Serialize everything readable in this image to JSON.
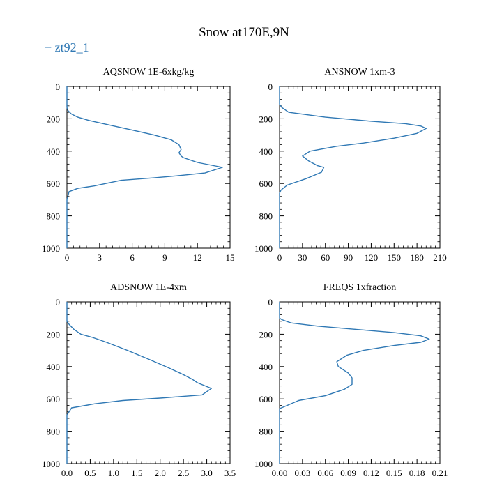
{
  "figure": {
    "title": "Snow at170E,9N",
    "legend_marker": "−",
    "legend_label": "zt92_1",
    "series_color": "#2f78b4"
  },
  "chart_data": [
    {
      "type": "line",
      "title": "AQSNOW  1E-6xkg/kg",
      "series": [
        {
          "name": "zt92_1",
          "x": [
            0,
            0,
            0.1,
            0.4,
            1.0,
            2.0,
            4.0,
            6.0,
            8.0,
            9.6,
            10.3,
            10.5,
            10.3,
            10.5,
            10.7,
            12.0,
            14.3,
            12.7,
            10.5,
            8.0,
            5.0,
            2.5,
            1.0,
            0.2,
            0,
            0
          ],
          "y": [
            0,
            130,
            150,
            170,
            190,
            210,
            240,
            270,
            300,
            330,
            360,
            390,
            410,
            430,
            440,
            470,
            500,
            535,
            550,
            565,
            580,
            615,
            630,
            650,
            700,
            1000
          ]
        }
      ],
      "xlim": [
        0,
        15
      ],
      "ylim": [
        1000,
        0
      ],
      "xticks": [
        "0",
        "3",
        "6",
        "9",
        "12",
        "15"
      ],
      "xtick_values": [
        0,
        3,
        6,
        9,
        12,
        15
      ],
      "yticks": [
        "0",
        "200",
        "400",
        "600",
        "800",
        "1000"
      ],
      "ytick_values": [
        0,
        200,
        400,
        600,
        800,
        1000
      ]
    },
    {
      "type": "line",
      "title": "ANSNOW  1xm-3",
      "series": [
        {
          "name": "zt92_1",
          "x": [
            0,
            0,
            3,
            12,
            60,
            120,
            165,
            185,
            192,
            180,
            150,
            110,
            75,
            40,
            30,
            38,
            50,
            58,
            55,
            35,
            10,
            2,
            0,
            0
          ],
          "y": [
            0,
            110,
            130,
            160,
            190,
            215,
            230,
            245,
            260,
            290,
            320,
            350,
            370,
            400,
            430,
            460,
            490,
            500,
            530,
            570,
            610,
            640,
            660,
            1000
          ]
        }
      ],
      "xlim": [
        0,
        210
      ],
      "ylim": [
        1000,
        0
      ],
      "xticks": [
        "0",
        "30",
        "60",
        "90",
        "120",
        "150",
        "180",
        "210"
      ],
      "xtick_values": [
        0,
        30,
        60,
        90,
        120,
        150,
        180,
        210
      ],
      "yticks": [
        "0",
        "200",
        "400",
        "600",
        "800",
        "1000"
      ],
      "ytick_values": [
        0,
        200,
        400,
        600,
        800,
        1000
      ]
    },
    {
      "type": "line",
      "title": "ADSNOW  1E-4xm",
      "series": [
        {
          "name": "zt92_1",
          "x": [
            0,
            0,
            0.05,
            0.15,
            0.3,
            0.55,
            0.85,
            1.3,
            1.8,
            2.2,
            2.5,
            2.7,
            2.8,
            3.1,
            2.9,
            2.0,
            1.2,
            0.6,
            0.1,
            0,
            0
          ],
          "y": [
            0,
            120,
            140,
            170,
            200,
            220,
            250,
            300,
            360,
            410,
            450,
            480,
            500,
            535,
            575,
            595,
            610,
            630,
            655,
            700,
            1000
          ]
        }
      ],
      "xlim": [
        0,
        3.5
      ],
      "ylim": [
        1000,
        0
      ],
      "xticks": [
        "0.0",
        "0.5",
        "1.0",
        "1.5",
        "2.0",
        "2.5",
        "3.0",
        "3.5"
      ],
      "xtick_values": [
        0,
        0.5,
        1.0,
        1.5,
        2.0,
        2.5,
        3.0,
        3.5
      ],
      "yticks": [
        "0",
        "200",
        "400",
        "600",
        "800",
        "1000"
      ],
      "ytick_values": [
        0,
        200,
        400,
        600,
        800,
        1000
      ]
    },
    {
      "type": "line",
      "title": "FREQS  1xfraction",
      "series": [
        {
          "name": "zt92_1",
          "x": [
            0,
            0,
            0.003,
            0.015,
            0.05,
            0.1,
            0.15,
            0.185,
            0.196,
            0.185,
            0.15,
            0.11,
            0.088,
            0.075,
            0.077,
            0.09,
            0.095,
            0.095,
            0.085,
            0.06,
            0.025,
            0.01,
            0,
            0
          ],
          "y": [
            0,
            100,
            110,
            130,
            150,
            170,
            190,
            210,
            230,
            250,
            270,
            300,
            330,
            370,
            400,
            440,
            470,
            510,
            540,
            580,
            610,
            640,
            660,
            1000
          ]
        }
      ],
      "xlim": [
        0,
        0.21
      ],
      "ylim": [
        1000,
        0
      ],
      "xticks": [
        "0.00",
        "0.03",
        "0.06",
        "0.09",
        "0.12",
        "0.15",
        "0.18",
        "0.21"
      ],
      "xtick_values": [
        0,
        0.03,
        0.06,
        0.09,
        0.12,
        0.15,
        0.18,
        0.21
      ],
      "yticks": [
        "0",
        "200",
        "400",
        "600",
        "800",
        "1000"
      ],
      "ytick_values": [
        0,
        200,
        400,
        600,
        800,
        1000
      ]
    }
  ]
}
